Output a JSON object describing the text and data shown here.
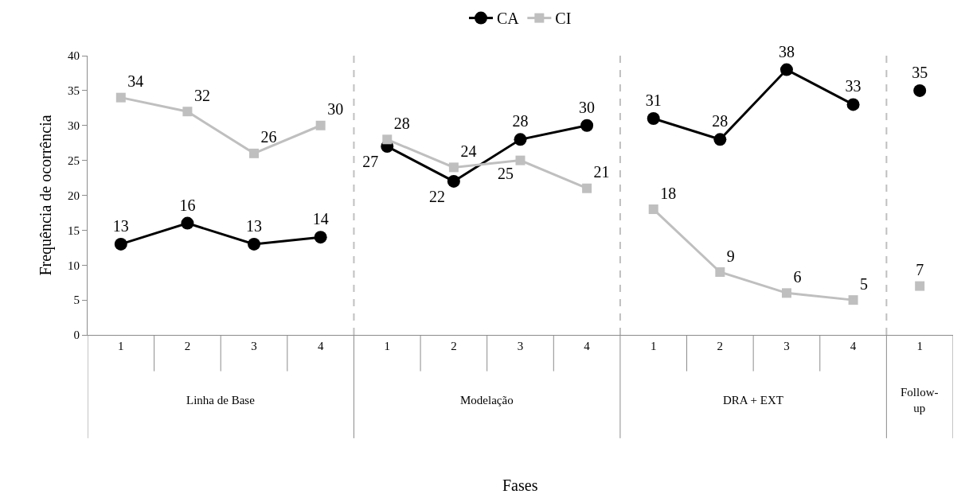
{
  "chart_data": {
    "type": "line",
    "ylabel": "Frequência de ocorrência",
    "categories": [
      "1",
      "2",
      "3",
      "4",
      "1",
      "2",
      "3",
      "4",
      "1",
      "2",
      "3",
      "4",
      "1"
    ],
    "series": [
      {
        "name": "CA",
        "color": "#000000",
        "marker": "circle",
        "values": [
          13,
          16,
          13,
          14,
          27,
          22,
          28,
          30,
          31,
          28,
          38,
          33,
          null
        ]
      },
      {
        "name": "CI",
        "color": "#bfbfbf",
        "marker": "square",
        "values": [
          34,
          32,
          26,
          30,
          28,
          24,
          25,
          21,
          18,
          9,
          6,
          5,
          null
        ]
      },
      {
        "type": "scatter",
        "color": "#000000",
        "marker": "circle",
        "values": [
          null,
          null,
          null,
          null,
          null,
          null,
          null,
          null,
          null,
          null,
          null,
          null,
          35
        ]
      },
      {
        "type": "scatter",
        "color": "#bfbfbf",
        "marker": "square",
        "values": [
          null,
          null,
          null,
          null,
          null,
          null,
          null,
          null,
          null,
          null,
          null,
          null,
          7
        ]
      }
    ],
    "annotations": [
      "Linha de Base",
      "Modelação",
      "DRA + EXT",
      "Follow-up",
      "Fases"
    ],
    "ylim": [
      0,
      40
    ],
    "yticks": [
      0,
      5,
      10,
      15,
      20,
      25,
      30,
      35,
      40
    ],
    "data_labels": true,
    "legend": "top"
  }
}
